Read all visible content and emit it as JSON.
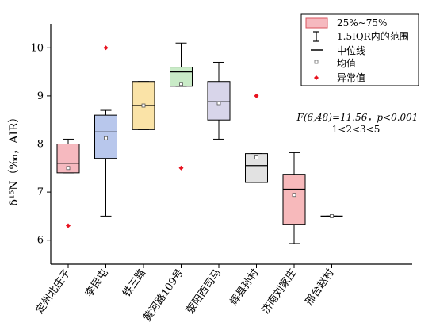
{
  "chart_data": {
    "type": "box",
    "ylabel": "δ¹⁵N（‰，AIR）",
    "ylim": [
      5.5,
      10.5
    ],
    "yticks": [
      6,
      7,
      8,
      9,
      10
    ],
    "categories": [
      "定州北庄子",
      "李民屯",
      "铁三路",
      "黄河路109号",
      "荥阳西司马",
      "辉县孙村",
      "济南刘家庄",
      "邢台赵村"
    ],
    "boxes": [
      {
        "q1": 7.4,
        "median": 7.6,
        "q3": 8.0,
        "whisker_low": 7.4,
        "whisker_high": 8.1,
        "mean": 7.5,
        "outliers": [
          6.3
        ],
        "fill": "#f6b9bf",
        "stroke": "#d9535c"
      },
      {
        "q1": 7.7,
        "median": 8.25,
        "q3": 8.6,
        "whisker_low": 6.5,
        "whisker_high": 8.7,
        "mean": 8.12,
        "outliers": [
          10.0
        ],
        "fill": "#b8c7ec",
        "stroke": "#3b56a8"
      },
      {
        "q1": 8.3,
        "median": 8.8,
        "q3": 9.3,
        "whisker_low": 8.3,
        "whisker_high": 9.3,
        "mean": 8.8,
        "outliers": [],
        "fill": "#fae3a7",
        "stroke": "#bf9a2d"
      },
      {
        "q1": 9.2,
        "median": 9.5,
        "q3": 9.6,
        "whisker_low": 9.2,
        "whisker_high": 10.1,
        "mean": 9.25,
        "outliers": [
          7.5
        ],
        "fill": "#c9ebc7",
        "stroke": "#3f8a3d"
      },
      {
        "q1": 8.5,
        "median": 8.88,
        "q3": 9.3,
        "whisker_low": 8.1,
        "whisker_high": 9.7,
        "mean": 8.85,
        "outliers": [],
        "fill": "#d8d5ea",
        "stroke": "#595581"
      },
      {
        "q1": 7.2,
        "median": 7.55,
        "q3": 7.8,
        "whisker_low": 7.2,
        "whisker_high": 7.8,
        "mean": 7.72,
        "outliers": [
          9.0
        ],
        "fill": "#e2e2e2",
        "stroke": "#555555"
      },
      {
        "q1": 6.33,
        "median": 7.06,
        "q3": 7.37,
        "whisker_low": 5.93,
        "whisker_high": 7.82,
        "mean": 6.94,
        "outliers": [],
        "fill": "#f7b9bb",
        "stroke": "#c9454b"
      },
      {
        "q1": 6.5,
        "median": 6.5,
        "q3": 6.5,
        "whisker_low": 6.5,
        "whisker_high": 6.5,
        "mean": 6.5,
        "outliers": [],
        "fill": "#ffffff",
        "stroke": "#000000"
      }
    ],
    "legend": {
      "placement": "top-right",
      "items": [
        "25%~75%",
        "1.5IQR内的范围",
        "中位线",
        "均值",
        "异常值"
      ]
    },
    "annotation_line1": "F(6,48)=11.56，p<0.001",
    "annotation_line2": "1<2<3<5",
    "colors": {
      "outlier": "#e8121f",
      "legend_box_fill": "#f6b9bf",
      "legend_box_stroke": "#d9535c"
    }
  }
}
